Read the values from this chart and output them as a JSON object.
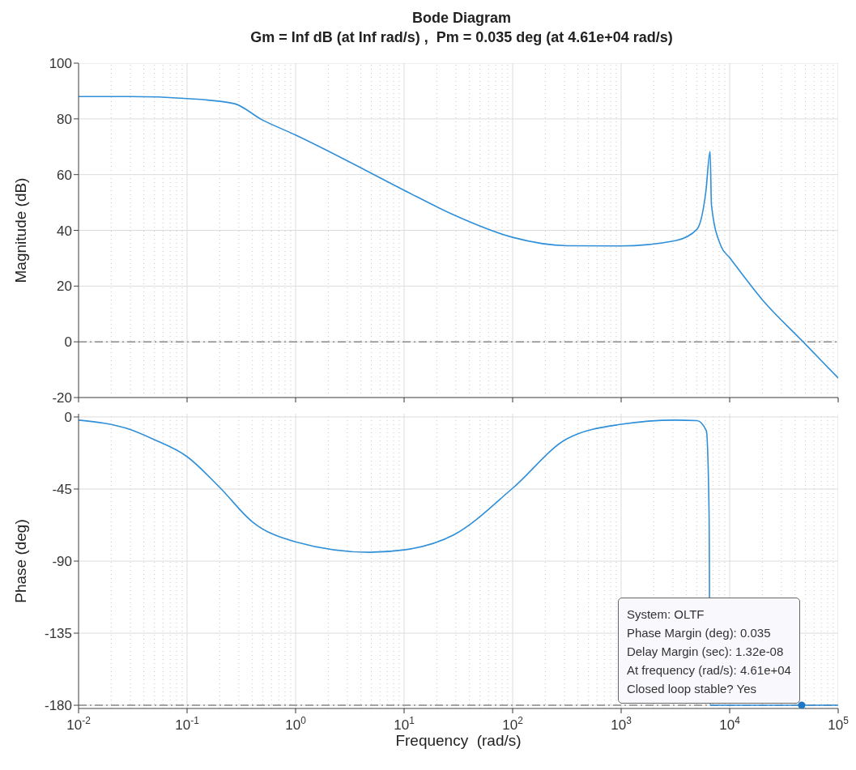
{
  "chart_data": [
    {
      "type": "line",
      "title": "Bode Diagram",
      "subtitle": "Gm = Inf dB (at Inf rad/s) ,  Pm = 0.035 deg (at 4.61e+04 rad/s)",
      "ylabel": "Magnitude (dB)",
      "log": "x",
      "grid": true,
      "tick_labels": "y",
      "xlim": [
        0.01,
        100000
      ],
      "xticks": [
        {
          "value": 0.01,
          "label": null
        },
        {
          "value": 0.1,
          "label": null
        },
        {
          "value": 1,
          "label": null
        },
        {
          "value": 10,
          "label": null
        },
        {
          "value": 100,
          "label": null
        },
        {
          "value": 1000,
          "label": null
        },
        {
          "value": 10000,
          "label": null
        },
        {
          "value": 100000,
          "label": null
        }
      ],
      "ylim": [
        -20,
        100
      ],
      "yticks": [
        -20,
        0,
        20,
        40,
        60,
        80,
        100
      ],
      "ref_lines": [
        {
          "axis": "y",
          "value": 0,
          "color": "#8c8c8c",
          "line_style": "dashdot"
        }
      ],
      "series": [
        {
          "type": "line",
          "color": "#2f8fd8",
          "marker": "none",
          "x": [
            0.01,
            0.03,
            0.1,
            0.27,
            0.49,
            1,
            3.16,
            10,
            28.5,
            100,
            316,
            1000,
            3162,
            5000,
            6030,
            6600,
            6800,
            8300,
            10000,
            20000,
            47500,
            100000
          ],
          "values": [
            88,
            88,
            87.3,
            85.5,
            79.7,
            74.2,
            64.5,
            54.4,
            45.6,
            37.5,
            34.5,
            34.4,
            36.3,
            40.4,
            53.8,
            68.3,
            49,
            34.4,
            30.2,
            15.1,
            0,
            -13
          ]
        }
      ]
    },
    {
      "type": "line",
      "ylabel": "Phase (deg)",
      "xlabel": "Frequency  (rad/s)",
      "log": "x",
      "grid": true,
      "xlim": [
        0.01,
        100000
      ],
      "xticks": [
        {
          "value": 0.01,
          "label": "10$^{-2}$"
        },
        {
          "value": 0.1,
          "label": "10$^{-1}$"
        },
        {
          "value": 1,
          "label": "10$^{0}$"
        },
        {
          "value": 10,
          "label": "10$^{1}$"
        },
        {
          "value": 100,
          "label": "10$^{2}$"
        },
        {
          "value": 1000,
          "label": "10$^{3}$"
        },
        {
          "value": 10000,
          "label": "10$^{4}$"
        },
        {
          "value": 100000,
          "label": "10$^{5}$"
        }
      ],
      "ylim": [
        -182,
        2
      ],
      "yticks": [
        -180,
        -135,
        -90,
        -45,
        0
      ],
      "ref_lines": [
        {
          "axis": "y",
          "value": -180,
          "color": "#8c8c8c",
          "line_style": "dashdot"
        }
      ],
      "annotations": [
        {
          "text": "System: OLTF\nPhase Margin (deg): 0.035\nDelay Margin (sec): 1.32e-08\nAt frequency (rad/s): 4.61e+04\nClosed loop stable? Yes",
          "x": 46100,
          "y": -180
        }
      ],
      "series": [
        {
          "type": "line",
          "color": "#2f8fd8",
          "marker": "none",
          "x": [
            0.01,
            0.03,
            0.048,
            0.1,
            0.2,
            0.4,
            1,
            4.8,
            10,
            28.5,
            100,
            316,
            1000,
            3162,
            5000,
            6100,
            6460,
            6600,
            47500,
            100000
          ],
          "values": [
            -2,
            -7.9,
            -13.7,
            -24.8,
            -44,
            -65.5,
            -78,
            -84.5,
            -83,
            -73.7,
            -44.5,
            -13.7,
            -4.6,
            -2,
            -2.3,
            -8.7,
            -60,
            -180,
            -180,
            -180
          ]
        },
        {
          "type": "scatter",
          "color": "#1f77c8",
          "marker": "circle",
          "x": [
            46100
          ],
          "values": [
            -180
          ]
        }
      ]
    }
  ]
}
